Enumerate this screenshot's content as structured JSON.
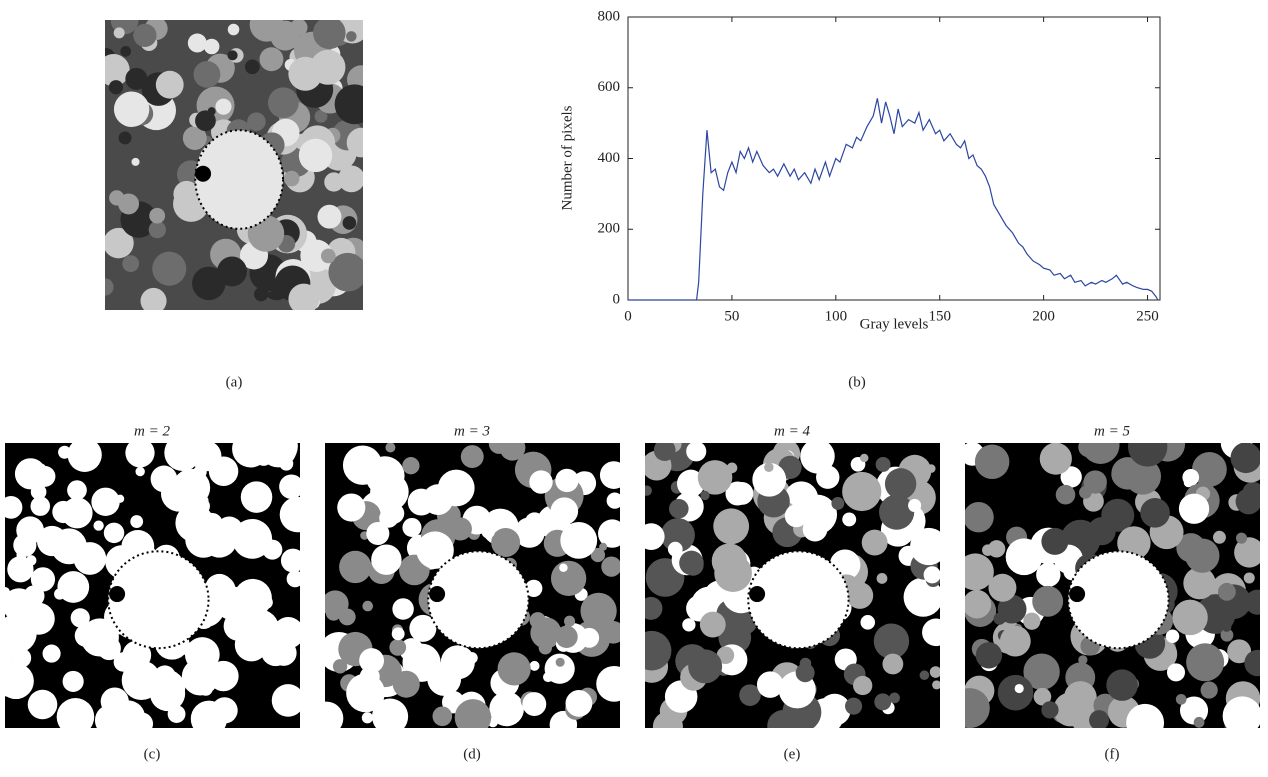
{
  "chart_data": {
    "type": "line",
    "x_label": "Gray levels",
    "y_label": "Number of pixels",
    "color": "#2b46a3",
    "xlim": [
      0,
      256
    ],
    "xticks": [
      0,
      50,
      100,
      150,
      200,
      250
    ],
    "ylim": [
      0,
      800
    ],
    "yticks": [
      0,
      200,
      400,
      600,
      800
    ],
    "x": [
      0,
      33,
      34,
      36,
      38,
      40,
      42,
      44,
      46,
      48,
      50,
      52,
      54,
      56,
      58,
      60,
      62,
      65,
      68,
      70,
      72,
      75,
      78,
      80,
      82,
      85,
      88,
      90,
      92,
      95,
      97,
      100,
      102,
      105,
      108,
      110,
      112,
      115,
      118,
      120,
      122,
      124,
      126,
      128,
      130,
      132,
      135,
      138,
      140,
      142,
      145,
      148,
      150,
      152,
      155,
      158,
      160,
      162,
      164,
      166,
      168,
      170,
      172,
      174,
      176,
      178,
      180,
      182,
      185,
      188,
      190,
      192,
      195,
      198,
      200,
      203,
      205,
      208,
      210,
      213,
      215,
      218,
      220,
      223,
      225,
      228,
      230,
      233,
      235,
      238,
      240,
      243,
      245,
      248,
      250,
      252,
      254,
      255
    ],
    "values": [
      0,
      0,
      50,
      300,
      480,
      360,
      370,
      320,
      310,
      360,
      390,
      360,
      420,
      400,
      430,
      390,
      420,
      380,
      360,
      370,
      350,
      385,
      350,
      370,
      340,
      360,
      330,
      370,
      340,
      390,
      350,
      400,
      390,
      440,
      430,
      460,
      450,
      490,
      520,
      570,
      500,
      560,
      520,
      470,
      540,
      490,
      510,
      500,
      530,
      480,
      510,
      470,
      480,
      450,
      470,
      440,
      430,
      450,
      400,
      410,
      380,
      370,
      350,
      320,
      270,
      250,
      230,
      210,
      190,
      160,
      150,
      130,
      110,
      100,
      90,
      85,
      70,
      75,
      60,
      70,
      50,
      55,
      40,
      50,
      45,
      55,
      50,
      60,
      70,
      45,
      50,
      40,
      35,
      30,
      30,
      25,
      10,
      0
    ]
  },
  "panels": [
    {
      "label": "(a)"
    },
    {
      "label": "(b)"
    },
    {
      "label": "(c)",
      "title": "m = 2"
    },
    {
      "label": "(d)",
      "title": "m = 3"
    },
    {
      "label": "(e)",
      "title": "m = 4"
    },
    {
      "label": "(f)",
      "title": "m = 5"
    }
  ]
}
